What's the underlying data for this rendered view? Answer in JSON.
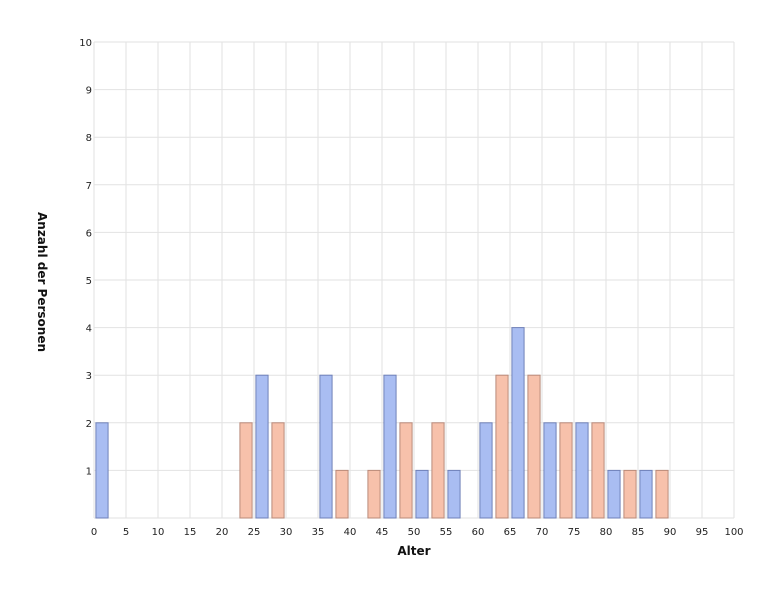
{
  "chart_data": {
    "type": "bar",
    "title": "",
    "xlabel": "Alter",
    "ylabel": "Anzahl der Personen",
    "xlim": [
      0,
      100
    ],
    "ylim": [
      0,
      10
    ],
    "x_ticks": [
      0,
      5,
      10,
      15,
      20,
      25,
      30,
      35,
      40,
      45,
      50,
      55,
      60,
      65,
      70,
      75,
      80,
      85,
      90,
      95,
      100
    ],
    "y_ticks": [
      1,
      2,
      3,
      4,
      5,
      6,
      7,
      8,
      9,
      10
    ],
    "grid": true,
    "bin_width": 2.5,
    "series": [
      {
        "color": "#a9bdf2",
        "stroke": "#6f80b8",
        "bins": [
          {
            "x": 0,
            "value": 2
          },
          {
            "x": 25,
            "value": 3
          },
          {
            "x": 35,
            "value": 3
          },
          {
            "x": 45,
            "value": 3
          },
          {
            "x": 50,
            "value": 1
          },
          {
            "x": 55,
            "value": 1
          },
          {
            "x": 60,
            "value": 2
          },
          {
            "x": 65,
            "value": 4
          },
          {
            "x": 70,
            "value": 2
          },
          {
            "x": 75,
            "value": 2
          },
          {
            "x": 80,
            "value": 1
          },
          {
            "x": 85,
            "value": 1
          }
        ]
      },
      {
        "color": "#f7c1ab",
        "stroke": "#b98a7a",
        "bins": [
          {
            "x": 22.5,
            "value": 2
          },
          {
            "x": 27.5,
            "value": 2
          },
          {
            "x": 37.5,
            "value": 1
          },
          {
            "x": 42.5,
            "value": 1
          },
          {
            "x": 47.5,
            "value": 2
          },
          {
            "x": 52.5,
            "value": 2
          },
          {
            "x": 62.5,
            "value": 3
          },
          {
            "x": 67.5,
            "value": 3
          },
          {
            "x": 72.5,
            "value": 2
          },
          {
            "x": 77.5,
            "value": 2
          },
          {
            "x": 82.5,
            "value": 1
          },
          {
            "x": 87.5,
            "value": 1
          }
        ]
      }
    ]
  }
}
